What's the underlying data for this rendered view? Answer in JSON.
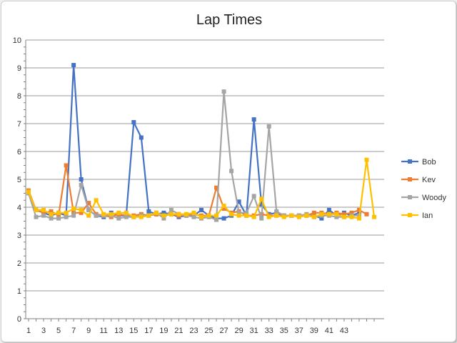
{
  "chart_data": {
    "type": "line",
    "title": "Lap Times",
    "xlabel": "",
    "ylabel": "",
    "ylim": [
      0,
      10
    ],
    "ytick_step": 1,
    "grid": true,
    "legend_position": "right",
    "x_tick_labels": [
      "1",
      "3",
      "5",
      "7",
      "9",
      "11",
      "13",
      "15",
      "17",
      "19",
      "21",
      "23",
      "25",
      "27",
      "29",
      "31",
      "33",
      "35",
      "37",
      "39",
      "41",
      "43"
    ],
    "x": [
      1,
      2,
      3,
      4,
      5,
      6,
      7,
      8,
      9,
      10,
      11,
      12,
      13,
      14,
      15,
      16,
      17,
      18,
      19,
      20,
      21,
      22,
      23,
      24,
      25,
      26,
      27,
      28,
      29,
      30,
      31,
      32,
      33,
      34,
      35,
      36,
      37,
      38,
      39,
      40,
      41,
      42,
      43,
      44,
      45,
      46,
      47
    ],
    "series": [
      {
        "name": "Bob",
        "color": "#4472c4",
        "values": [
          4.5,
          3.9,
          3.8,
          3.7,
          3.8,
          3.7,
          9.1,
          5.0,
          3.9,
          3.7,
          3.65,
          3.8,
          3.7,
          3.7,
          7.05,
          6.5,
          3.85,
          3.75,
          3.8,
          3.75,
          3.65,
          3.7,
          3.7,
          3.9,
          3.7,
          3.6,
          3.6,
          3.7,
          4.2,
          3.7,
          7.15,
          4.1,
          3.75,
          3.8,
          3.7,
          3.7,
          3.7,
          3.7,
          3.7,
          3.6,
          3.9,
          3.7,
          3.8,
          3.7,
          3.8,
          null,
          null
        ]
      },
      {
        "name": "Kev",
        "color": "#ed7d31",
        "values": [
          4.6,
          3.9,
          3.8,
          3.85,
          3.7,
          5.5,
          3.8,
          3.8,
          4.15,
          3.75,
          3.7,
          3.65,
          3.75,
          3.7,
          3.7,
          3.75,
          3.7,
          3.75,
          3.7,
          3.75,
          3.7,
          3.7,
          3.75,
          3.7,
          3.7,
          4.7,
          3.95,
          3.8,
          3.85,
          3.7,
          3.7,
          3.75,
          3.7,
          3.7,
          3.7,
          3.7,
          3.7,
          3.7,
          3.8,
          3.8,
          3.75,
          3.8,
          3.75,
          3.8,
          3.9,
          3.75,
          null
        ]
      },
      {
        "name": "Woody",
        "color": "#a5a5a5",
        "values": [
          4.5,
          3.65,
          3.7,
          3.6,
          3.6,
          3.65,
          3.7,
          4.8,
          3.9,
          3.7,
          3.7,
          3.7,
          3.6,
          3.65,
          3.65,
          3.7,
          3.7,
          3.8,
          3.6,
          3.9,
          3.75,
          3.7,
          3.65,
          3.6,
          3.65,
          3.55,
          8.15,
          5.3,
          3.8,
          3.8,
          4.4,
          3.6,
          6.9,
          3.85,
          3.7,
          3.7,
          3.7,
          3.75,
          3.65,
          3.7,
          3.7,
          3.65,
          3.65,
          3.7,
          3.7,
          null,
          null
        ]
      },
      {
        "name": "Ian",
        "color": "#ffc000",
        "values": [
          4.55,
          3.9,
          3.9,
          3.75,
          3.8,
          3.8,
          3.95,
          3.9,
          3.7,
          4.25,
          3.75,
          3.75,
          3.8,
          3.8,
          3.65,
          3.65,
          3.7,
          3.8,
          3.7,
          3.75,
          3.75,
          3.75,
          3.8,
          3.65,
          3.7,
          3.7,
          4.05,
          3.75,
          3.7,
          3.7,
          3.65,
          4.3,
          3.65,
          3.7,
          3.65,
          3.7,
          3.65,
          3.7,
          3.65,
          3.75,
          3.75,
          3.75,
          3.65,
          3.65,
          3.6,
          5.7,
          3.65
        ]
      }
    ]
  }
}
